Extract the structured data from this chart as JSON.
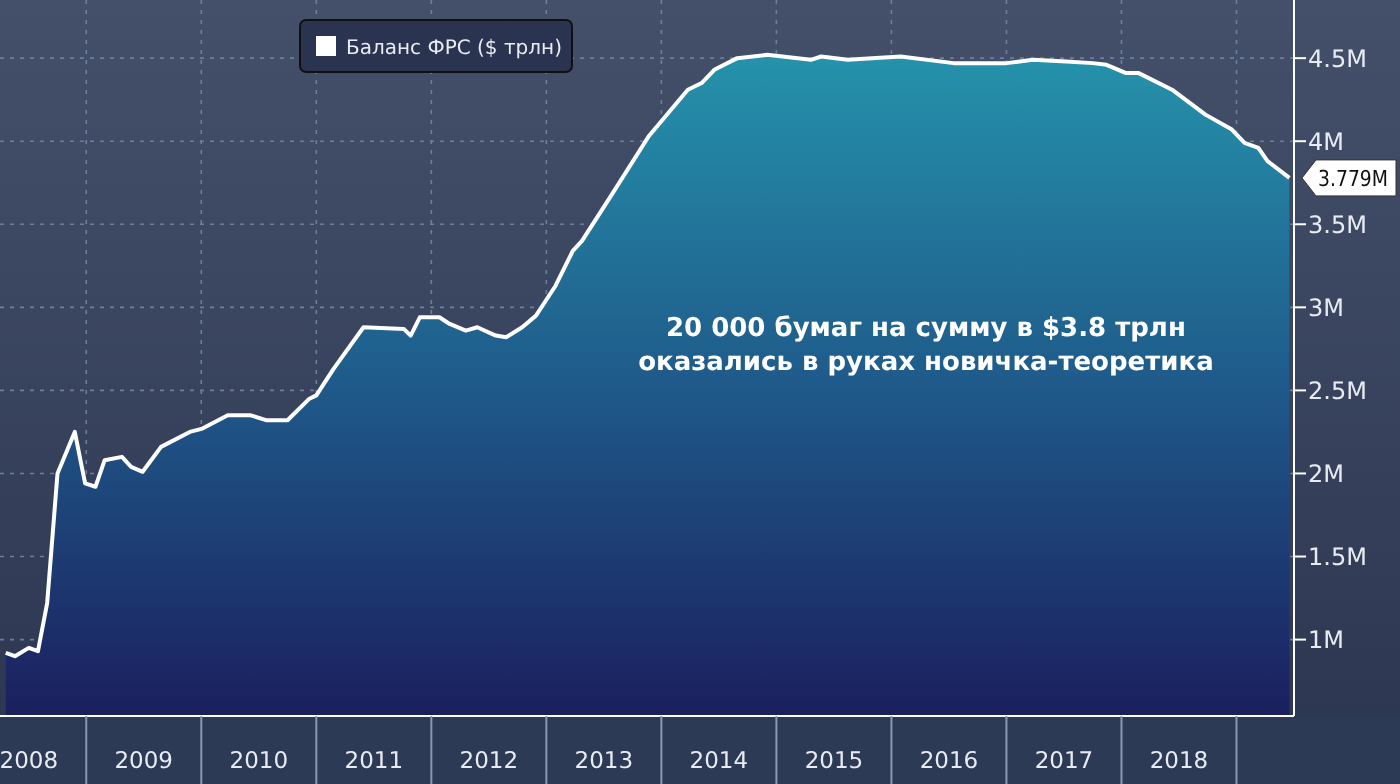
{
  "chart_data": {
    "type": "area",
    "annotations": [
      "20 000 бумаг на сумму в $3.8 трлн\nоказались в руках новичка-теоретика"
    ],
    "x": [
      2008.3,
      2008.38,
      2008.5,
      2008.58,
      2008.66,
      2008.75,
      2008.9,
      2008.99,
      2009.08,
      2009.16,
      2009.31,
      2009.39,
      2009.49,
      2009.65,
      2009.9,
      2010.01,
      2010.23,
      2010.43,
      2010.57,
      2010.75,
      2010.94,
      2011.0,
      2011.15,
      2011.41,
      2011.76,
      2011.82,
      2011.9,
      2012.07,
      2012.16,
      2012.3,
      2012.4,
      2012.56,
      2012.65,
      2012.79,
      2012.91,
      2013.08,
      2013.23,
      2013.31,
      2013.57,
      2013.89,
      2014.06,
      2014.23,
      2014.35,
      2014.46,
      2014.66,
      2014.92,
      2015.3,
      2015.39,
      2015.62,
      2016.08,
      2016.54,
      2017.0,
      2017.23,
      2017.52,
      2017.75,
      2017.87,
      2018.04,
      2018.15,
      2018.44,
      2018.73,
      2018.96,
      2019.07,
      2019.19,
      2019.27,
      2019.46
    ],
    "series": [
      {
        "name": "Баланс ФРС ($ трлн)",
        "color": "#ffffff",
        "values": [
          0.92,
          0.9,
          0.95,
          0.93,
          1.22,
          2.0,
          2.25,
          1.94,
          1.92,
          2.08,
          2.1,
          2.04,
          2.01,
          2.16,
          2.25,
          2.27,
          2.35,
          2.35,
          2.32,
          2.32,
          2.45,
          2.47,
          2.63,
          2.88,
          2.87,
          2.83,
          2.94,
          2.94,
          2.9,
          2.86,
          2.88,
          2.83,
          2.82,
          2.88,
          2.95,
          3.13,
          3.34,
          3.4,
          3.68,
          4.03,
          4.17,
          4.31,
          4.35,
          4.43,
          4.5,
          4.52,
          4.49,
          4.51,
          4.49,
          4.51,
          4.47,
          4.47,
          4.49,
          4.48,
          4.47,
          4.46,
          4.41,
          4.41,
          4.31,
          4.16,
          4.07,
          3.99,
          3.96,
          3.88,
          3.779
        ],
        "value_labels": [
          null,
          null,
          null,
          null,
          null,
          null,
          null,
          null,
          null,
          null,
          null,
          null,
          null,
          null,
          null,
          null,
          null,
          null,
          null,
          null,
          null,
          null,
          null,
          null,
          null,
          null,
          null,
          null,
          null,
          null,
          null,
          null,
          null,
          null,
          null,
          null,
          null,
          null,
          null,
          null,
          null,
          null,
          null,
          null,
          null,
          null,
          null,
          null,
          null,
          null,
          null,
          null,
          null,
          null,
          null,
          null,
          null,
          null,
          null,
          null,
          null,
          null,
          null,
          null,
          "3.779M"
        ]
      }
    ],
    "xlim": [
      2008.25,
      2019.5
    ],
    "xticks": [
      {
        "value": 2008.5,
        "label": "2008"
      },
      {
        "value": 2009,
        "label": null
      },
      {
        "value": 2009.5,
        "label": "2009"
      },
      {
        "value": 2010,
        "label": null
      },
      {
        "value": 2010.5,
        "label": "2010"
      },
      {
        "value": 2011,
        "label": null
      },
      {
        "value": 2011.5,
        "label": "2011"
      },
      {
        "value": 2012,
        "label": null
      },
      {
        "value": 2012.5,
        "label": "2012"
      },
      {
        "value": 2013,
        "label": null
      },
      {
        "value": 2013.5,
        "label": "2013"
      },
      {
        "value": 2014,
        "label": null
      },
      {
        "value": 2014.5,
        "label": "2014"
      },
      {
        "value": 2015,
        "label": null
      },
      {
        "value": 2015.5,
        "label": "2015"
      },
      {
        "value": 2016,
        "label": null
      },
      {
        "value": 2016.5,
        "label": "2016"
      },
      {
        "value": 2017,
        "label": null
      },
      {
        "value": 2017.5,
        "label": "2017"
      },
      {
        "value": 2018,
        "label": null
      },
      {
        "value": 2018.5,
        "label": "2018"
      },
      {
        "value": 2019,
        "label": null
      }
    ],
    "ylim": [
      0.54,
      4.85
    ],
    "yticks": [
      {
        "value": 1,
        "label": "1M"
      },
      {
        "value": 1.5,
        "label": "1.5M"
      },
      {
        "value": 2,
        "label": "2M"
      },
      {
        "value": 2.5,
        "label": "2.5M"
      },
      {
        "value": 3,
        "label": "3M"
      },
      {
        "value": 3.5,
        "label": "3.5M"
      },
      {
        "value": 4,
        "label": "4M"
      },
      {
        "value": 4.5,
        "label": "4.5M"
      }
    ],
    "grid": true,
    "legend": "top left"
  }
}
